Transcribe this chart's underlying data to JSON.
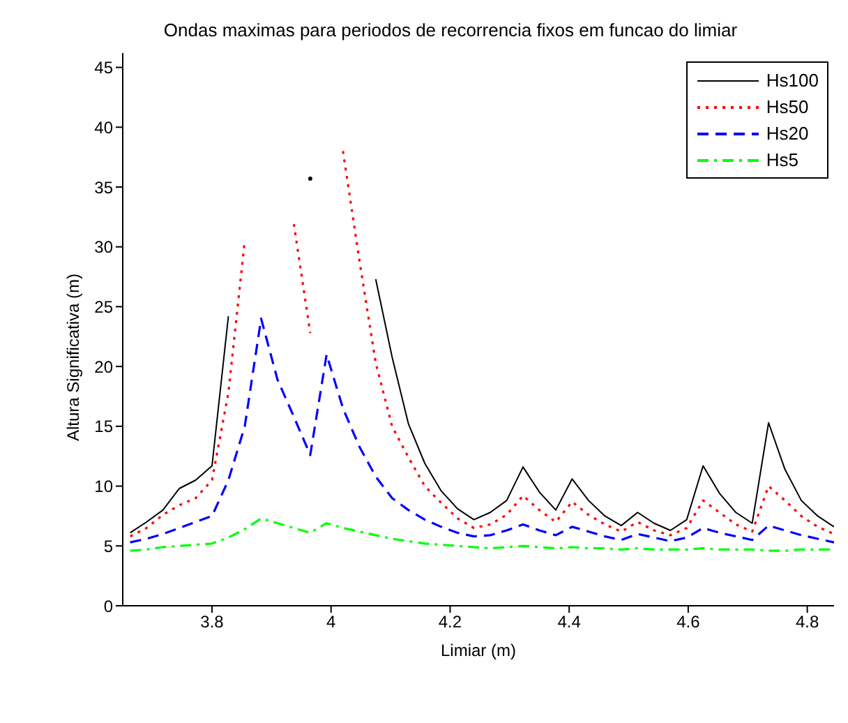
{
  "chart_data": {
    "type": "line",
    "title": "Ondas maximas para periodos de recorrencia fixos em funcao do limiar",
    "xlabel": "Limiar (m)",
    "ylabel": "Altura Significativa (m)",
    "x": [
      3.6625,
      3.69,
      3.7175,
      3.745,
      3.7725,
      3.8,
      3.8275,
      3.855,
      3.8825,
      3.91,
      3.9375,
      3.965,
      3.9925,
      4.02,
      4.0475,
      4.075,
      4.1025,
      4.13,
      4.1575,
      4.185,
      4.2125,
      4.24,
      4.2675,
      4.295,
      4.3225,
      4.35,
      4.3775,
      4.405,
      4.4325,
      4.46,
      4.4875,
      4.515,
      4.5425,
      4.57,
      4.5975,
      4.625,
      4.6525,
      4.68,
      4.7075,
      4.735,
      4.7625,
      4.79,
      4.8175,
      4.845
    ],
    "series": [
      {
        "name": "Hs100",
        "color": "#000000",
        "line_style": "solid",
        "values": [
          6.1,
          7.0,
          8.0,
          9.8,
          10.5,
          11.7,
          24.2,
          null,
          null,
          null,
          null,
          35.7,
          null,
          null,
          null,
          27.3,
          20.8,
          15.2,
          11.9,
          9.6,
          8.1,
          7.2,
          7.8,
          8.8,
          11.6,
          9.5,
          8.0,
          10.6,
          8.8,
          7.5,
          6.7,
          7.8,
          6.9,
          6.3,
          7.2,
          11.7,
          9.4,
          7.8,
          6.9,
          15.3,
          11.4,
          8.8,
          7.5,
          6.6
        ]
      },
      {
        "name": "Hs50",
        "color": "#ff0000",
        "line_style": "dotted",
        "values": [
          5.8,
          6.5,
          7.6,
          8.4,
          9.0,
          10.5,
          17.8,
          30.5,
          null,
          null,
          31.9,
          22.8,
          null,
          38.0,
          28.9,
          20.3,
          15.0,
          12.4,
          10.0,
          8.6,
          7.3,
          6.5,
          6.8,
          7.6,
          9.2,
          8.0,
          7.0,
          8.7,
          7.6,
          6.8,
          6.2,
          7.0,
          6.3,
          5.9,
          6.5,
          8.8,
          7.8,
          6.8,
          6.2,
          10.0,
          8.8,
          7.5,
          6.6,
          6.0
        ]
      },
      {
        "name": "Hs20",
        "color": "#0000ff",
        "line_style": "dashed",
        "values": [
          5.3,
          5.6,
          6.0,
          6.5,
          7.0,
          7.5,
          10.5,
          15.0,
          24.0,
          18.9,
          15.8,
          12.6,
          21.0,
          16.5,
          13.3,
          10.8,
          9.0,
          8.0,
          7.2,
          6.6,
          6.1,
          5.8,
          5.9,
          6.3,
          6.8,
          6.3,
          5.9,
          6.6,
          6.2,
          5.8,
          5.5,
          6.0,
          5.7,
          5.4,
          5.7,
          6.5,
          6.1,
          5.8,
          5.5,
          6.7,
          6.3,
          5.9,
          5.6,
          5.3
        ]
      },
      {
        "name": "Hs5",
        "color": "#00ff00",
        "line_style": "dashdot",
        "values": [
          4.6,
          4.7,
          4.9,
          5.0,
          5.1,
          5.2,
          5.7,
          6.4,
          7.3,
          6.9,
          6.5,
          6.1,
          6.9,
          6.5,
          6.2,
          5.9,
          5.6,
          5.4,
          5.2,
          5.1,
          5.0,
          4.9,
          4.8,
          4.9,
          5.0,
          4.9,
          4.8,
          4.9,
          4.8,
          4.8,
          4.7,
          4.8,
          4.7,
          4.7,
          4.7,
          4.8,
          4.7,
          4.7,
          4.7,
          4.6,
          4.6,
          4.7,
          4.7,
          4.7
        ]
      }
    ],
    "xlim": [
      3.65,
      4.845
    ],
    "xticks": [
      3.8,
      4,
      4.2,
      4.4,
      4.6,
      4.8
    ],
    "ylim": [
      0,
      46.2
    ],
    "yticks": [
      0,
      5,
      10,
      15,
      20,
      25,
      30,
      35,
      40,
      45
    ],
    "legend": "top right"
  }
}
